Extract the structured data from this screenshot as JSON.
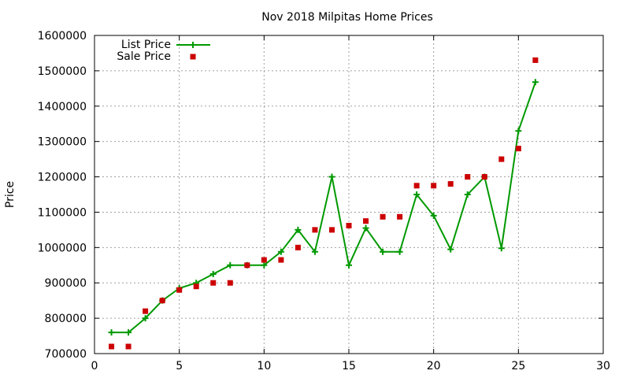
{
  "colors": {
    "list_price": "#009900",
    "sale_price": "#cc0000"
  },
  "chart_data": {
    "type": "line",
    "title": "Nov 2018 Milpitas Home Prices",
    "xlabel": "",
    "ylabel": "Price",
    "xlim": [
      0,
      30
    ],
    "ylim": [
      700000,
      1600000
    ],
    "x_ticks": [
      "0",
      "5",
      "10",
      "15",
      "20",
      "25",
      "30"
    ],
    "y_ticks": [
      "700000",
      "800000",
      "900000",
      "1000000",
      "1100000",
      "1200000",
      "1300000",
      "1400000",
      "1500000",
      "1600000"
    ],
    "grid": true,
    "legend_position": "top-left",
    "series": [
      {
        "name": "List Price",
        "style": "line-with-plus-markers",
        "color": "#009900",
        "x": [
          1,
          2,
          3,
          4,
          5,
          6,
          7,
          8,
          9,
          10,
          11,
          12,
          13,
          14,
          15,
          16,
          17,
          18,
          19,
          20,
          21,
          22,
          23,
          24,
          25,
          26
        ],
        "y": [
          760000,
          760000,
          800000,
          850000,
          885000,
          900000,
          925000,
          950000,
          950000,
          950000,
          988000,
          1050000,
          988000,
          1200000,
          950000,
          1055000,
          988000,
          988000,
          1150000,
          1090000,
          995000,
          1150000,
          1200000,
          998000,
          1330000,
          1468000
        ]
      },
      {
        "name": "Sale Price",
        "style": "square-markers",
        "color": "#cc0000",
        "x": [
          1,
          2,
          3,
          4,
          5,
          6,
          7,
          8,
          9,
          10,
          11,
          12,
          13,
          14,
          15,
          16,
          17,
          18,
          19,
          20,
          21,
          22,
          23,
          24,
          25,
          26
        ],
        "y": [
          720000,
          720000,
          820000,
          850000,
          880000,
          890000,
          900000,
          900000,
          950000,
          965000,
          965000,
          1000000,
          1050000,
          1050000,
          1062000,
          1075000,
          1087000,
          1087000,
          1175000,
          1175000,
          1180000,
          1200000,
          1200000,
          1250000,
          1280000,
          1530000
        ]
      }
    ]
  }
}
